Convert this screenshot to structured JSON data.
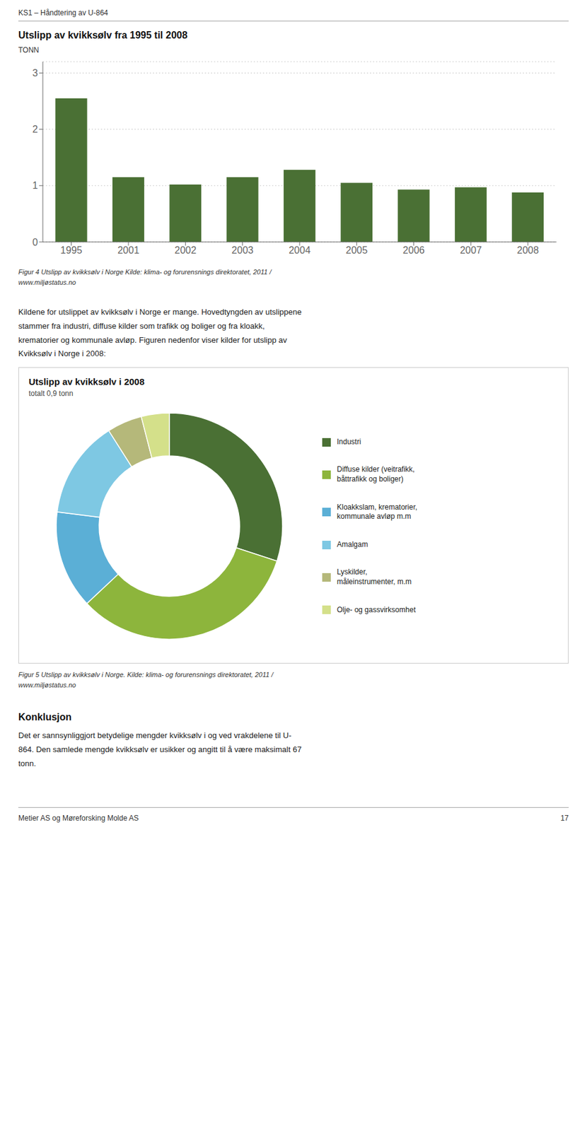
{
  "chart_data": [
    {
      "type": "bar",
      "title": "Utslipp av kvikksølv fra 1995 til 2008",
      "ylabel": "TONN",
      "categories": [
        "1995",
        "2001",
        "2002",
        "2003",
        "2004",
        "2005",
        "2006",
        "2007",
        "2008"
      ],
      "values": [
        2.55,
        1.15,
        1.02,
        1.15,
        1.28,
        1.05,
        0.93,
        0.97,
        0.88
      ],
      "color": "#4a7034",
      "ylim": [
        0,
        3.2
      ],
      "yticks": [
        0,
        1,
        2,
        3
      ],
      "grid": true,
      "annotations": [
        "KS1 – Håndtering av U-864",
        "Figur 4 Utslipp av kvikksølv i Norge Kilde: klima- og forurensnings direktoratet, 2011 /\nwww.miljøstatus.no",
        "Kildene for utslippet av kvikksølv i Norge er mange. Hovedtyngden av utslippene\nstammer fra industri, diffuse kilder som trafikk og boliger og fra kloakk,\nkrematorier og kommunale avløp. Figuren nedenfor viser kilder for utslipp av\nKvikksølv i Norge i 2008:"
      ]
    },
    {
      "type": "pie",
      "title": "Utslipp av kvikksølv i 2008",
      "subtitle": "totalt 0,9 tonn",
      "categories": [
        "Industri",
        "Diffuse kilder (veitrafikk,\nbåttrafikk og boliger)",
        "Kloakkslam, krematorier,\nkommunale avløp m.m",
        "Amalgam",
        "Lyskilder,\nmåleinstrumenter, m.m",
        "Olje- og gassvirksomhet"
      ],
      "values": [
        30,
        33,
        14,
        14,
        5,
        4
      ],
      "colors": [
        "#4a7034",
        "#8db53c",
        "#5bafd6",
        "#7ec8e3",
        "#b5b87a",
        "#d4e08a"
      ],
      "legend": "right",
      "annotations": [
        "Figur 5 Utslipp av kvikksølv i Norge. Kilde: klima- og forurensnings direktoratet, 2011 /\nwww.miljøstatus.no",
        "Konklusjon",
        "Det er sannsynliggjort betydelige mengder kvikksølv i og ved vrakdelene til U-\n864. Den samlede mengde kvikksølv er usikker og angitt til å være maksimalt 67\ntonn.",
        "Metier AS og Møreforsking Molde AS",
        "17"
      ]
    }
  ]
}
